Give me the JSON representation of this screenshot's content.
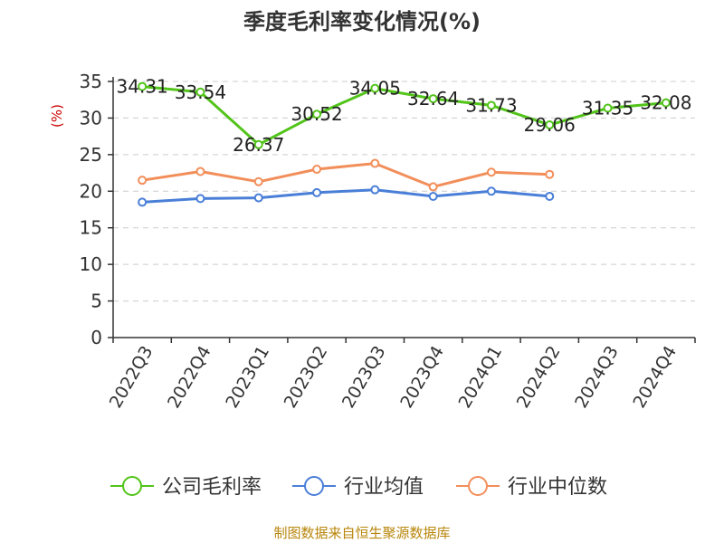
{
  "chart_data": {
    "type": "line",
    "title": "季度毛利率变化情况(%)",
    "ylabel": "(%)",
    "ylim": [
      0,
      35
    ],
    "yticks": [
      0,
      5,
      10,
      15,
      20,
      25,
      30,
      35
    ],
    "grid": true,
    "legend_position": "bottom",
    "categories": [
      "2022Q3",
      "2022Q4",
      "2023Q1",
      "2023Q2",
      "2023Q3",
      "2023Q4",
      "2024Q1",
      "2024Q2",
      "2024Q3",
      "2024Q4"
    ],
    "series": [
      {
        "name": "公司毛利率",
        "color": "#52c41a",
        "show_labels": true,
        "values": [
          34.31,
          33.54,
          26.37,
          30.52,
          34.05,
          32.64,
          31.73,
          29.06,
          31.35,
          32.08
        ]
      },
      {
        "name": "行业均值",
        "color": "#4a7fd8",
        "show_labels": false,
        "values": [
          18.5,
          19.0,
          19.1,
          19.8,
          20.2,
          19.3,
          20.0,
          19.3,
          null,
          null
        ]
      },
      {
        "name": "行业中位数",
        "color": "#f28e5a",
        "show_labels": false,
        "values": [
          21.5,
          22.7,
          21.3,
          23.0,
          23.8,
          20.6,
          22.6,
          22.3,
          null,
          null
        ]
      }
    ]
  },
  "source": "制图数据来自恒生聚源数据库",
  "colors": {
    "axis": "#333333",
    "grid": "#cccccc",
    "ylabel": "#cc0000",
    "source": "#b8860b"
  }
}
